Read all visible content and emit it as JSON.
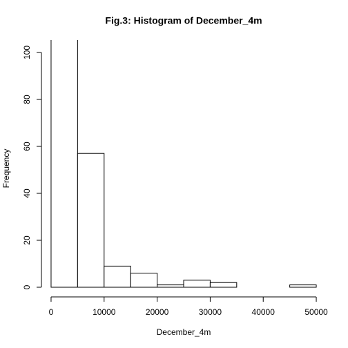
{
  "chart_data": {
    "type": "histogram",
    "title": "Fig.3: Histogram of December_4m",
    "x_label": "December_4m",
    "y_label": "Frequency",
    "bins": [
      0,
      5000,
      10000,
      15000,
      20000,
      25000,
      30000,
      35000,
      40000,
      45000,
      50000
    ],
    "values": [
      110,
      57,
      9,
      6,
      1,
      3,
      2,
      0,
      0,
      1
    ],
    "color": "#ffffff",
    "xlim": [
      -2000,
      52000
    ],
    "ylim": [
      -4,
      104
    ],
    "xticks": [
      0,
      10000,
      20000,
      30000,
      40000,
      50000
    ],
    "yticks": [
      0,
      20,
      40,
      60,
      80,
      100
    ]
  }
}
